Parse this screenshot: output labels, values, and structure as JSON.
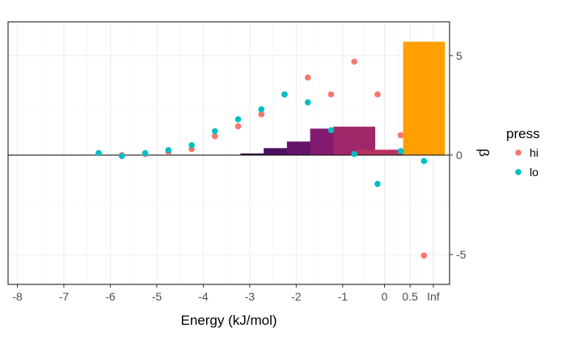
{
  "chart_data": {
    "type": "bar+scatter",
    "xlabel": "Energy (kJ/mol)",
    "ylabel": "β",
    "x_tick_labels": [
      "-8",
      "-7",
      "-6",
      "-5",
      "-4",
      "-3",
      "-2",
      "-1",
      "0",
      "0.5",
      "Inf"
    ],
    "y_tick_labels": [
      "-5",
      "0",
      "5"
    ],
    "y_ticks": [
      -5,
      0,
      5
    ],
    "xlim": [
      -8.2,
      1.3
    ],
    "ylim": [
      -6.5,
      6.7
    ],
    "grid": true,
    "legend": {
      "title": "press",
      "position": "right",
      "entries": [
        {
          "label": "hi",
          "color": "#F8766D"
        },
        {
          "label": "lo",
          "color": "#00BFC4"
        }
      ]
    },
    "bars": [
      {
        "x": -2.75,
        "value": 0.08,
        "color": "#3B0F52"
      },
      {
        "x": -2.25,
        "value": 0.35,
        "color": "#4E1060"
      },
      {
        "x": -1.75,
        "value": 0.68,
        "color": "#65146C"
      },
      {
        "x": -1.25,
        "value": 1.33,
        "color": "#821B6F"
      },
      {
        "x": -0.75,
        "value": 1.43,
        "color": "#A0286A"
      },
      {
        "x": -0.25,
        "value": 0.27,
        "color": "#B8325F"
      },
      {
        "x": 0.25,
        "value": 0.08,
        "color": "#C93B55"
      },
      {
        "x": 0.75,
        "value": 5.7,
        "color": "#FF9F00"
      }
    ],
    "series": [
      {
        "name": "hi",
        "color": "#F8766D",
        "points": [
          [
            -6.25,
            0.1
          ],
          [
            -5.75,
            0.0
          ],
          [
            -5.25,
            0.05
          ],
          [
            -4.75,
            0.15
          ],
          [
            -4.25,
            0.3
          ],
          [
            -3.75,
            0.95
          ],
          [
            -3.25,
            1.45
          ],
          [
            -2.75,
            2.05
          ],
          [
            -2.25,
            3.05
          ],
          [
            -1.75,
            3.9
          ],
          [
            -1.25,
            3.05
          ],
          [
            -0.75,
            4.7
          ],
          [
            -0.25,
            3.05
          ],
          [
            0.25,
            1.0
          ],
          [
            0.75,
            -5.05
          ]
        ]
      },
      {
        "name": "lo",
        "color": "#00BFC4",
        "points": [
          [
            -6.25,
            0.1
          ],
          [
            -5.75,
            -0.05
          ],
          [
            -5.25,
            0.1
          ],
          [
            -4.75,
            0.25
          ],
          [
            -4.25,
            0.5
          ],
          [
            -3.75,
            1.2
          ],
          [
            -3.25,
            1.8
          ],
          [
            -2.75,
            2.3
          ],
          [
            -2.25,
            3.05
          ],
          [
            -1.75,
            2.65
          ],
          [
            -1.25,
            1.25
          ],
          [
            -0.75,
            0.05
          ],
          [
            -0.25,
            -1.45
          ],
          [
            0.25,
            0.2
          ],
          [
            0.75,
            -0.3
          ]
        ]
      }
    ]
  }
}
